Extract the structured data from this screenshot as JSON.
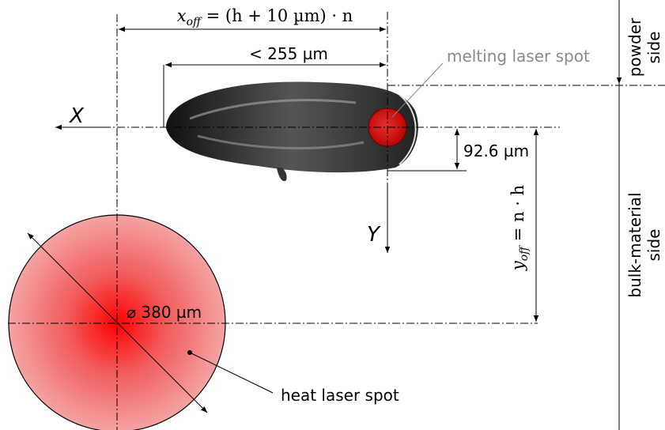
{
  "x_offset": {
    "var": "x",
    "sub": "off",
    "rest": " = (h + 10 µm) · n"
  },
  "track_length": "< 255 µm",
  "melting_spot_label": "melting laser spot",
  "powder_side": [
    "powder",
    "side"
  ],
  "x_axis": "X",
  "y_axis": "Y",
  "melt_width": "92.6 µm",
  "y_offset": {
    "var": "y",
    "sub": "off",
    "rest": " = n · h"
  },
  "bulk_side": [
    "bulk-material",
    "side"
  ],
  "heat_diameter": "⌀ 380 µm",
  "heat_spot_label": "heat laser spot"
}
